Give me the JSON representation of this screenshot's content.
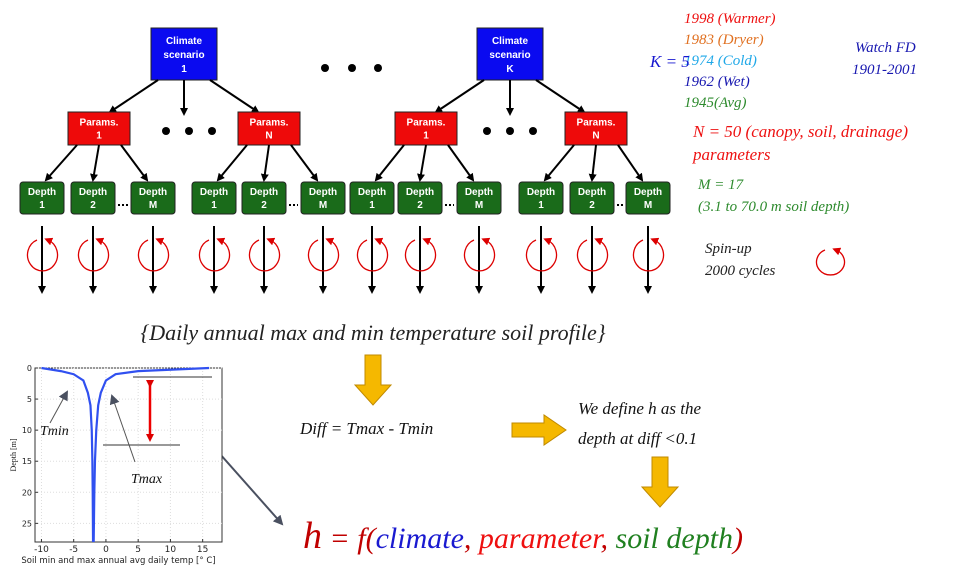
{
  "tree": {
    "scenarios": [
      {
        "lines": [
          "Climate",
          "scenario",
          "1"
        ]
      },
      {
        "lines": [
          "Climate",
          "scenario",
          "K"
        ]
      }
    ],
    "params": [
      {
        "lines": [
          "Params.",
          "1"
        ]
      },
      {
        "lines": [
          "Params.",
          "N"
        ]
      },
      {
        "lines": [
          "Params.",
          "1"
        ]
      },
      {
        "lines": [
          "Params.",
          "N"
        ]
      }
    ],
    "depths": [
      [
        "Depth",
        "1"
      ],
      [
        "Depth",
        "2"
      ],
      [
        "Depth",
        "M"
      ],
      [
        "Depth",
        "1"
      ],
      [
        "Depth",
        "2"
      ],
      [
        "Depth",
        "M"
      ],
      [
        "Depth",
        "1"
      ],
      [
        "Depth",
        "2"
      ],
      [
        "Depth",
        "M"
      ],
      [
        "Depth",
        "1"
      ],
      [
        "Depth",
        "2"
      ],
      [
        "Depth",
        "M"
      ]
    ]
  },
  "annotations": {
    "years": [
      "1998 (Warmer)",
      "1983 (Dryer)",
      "1974 (Cold)",
      "1962 (Wet)",
      "1945(Avg)"
    ],
    "k": "K = 5",
    "forcing": [
      "Watch FD",
      "1901-2001"
    ],
    "n": [
      "N = 50 (canopy, soil, drainage)",
      "parameters"
    ],
    "m": [
      "M = 17",
      "(3.1 to 70.0 m soil depth)"
    ],
    "spinup": [
      "Spin-up",
      "2000 cycles"
    ]
  },
  "caption": "{Daily annual max and min temperature soil profile}",
  "diff": "Diff = Tmax - Tmin",
  "define": [
    "We define h as the",
    "depth at diff <0.1"
  ],
  "formula": [
    "h",
    " = f(",
    "climate",
    ", ",
    "parameter",
    ", ",
    "soil depth",
    ")"
  ],
  "profile_plot": {
    "x_label": "Soil min and max annual avg daily temp [° C]",
    "y_label": "Depth [m]",
    "xlim": [
      -11,
      18
    ],
    "ylim": [
      0,
      28
    ],
    "xticks": [
      -10,
      -5,
      0,
      5,
      10,
      15
    ],
    "yticks": [
      0,
      5,
      10,
      15,
      20,
      25
    ],
    "tmin_label": "Tmin",
    "tmax_label": "Tmax",
    "tmin_curve": {
      "temp": [
        -10,
        -7,
        -5,
        -3.5,
        -2.8,
        -2.4,
        -2.2,
        -2.1,
        -2.05,
        -2
      ],
      "depth": [
        0,
        0.5,
        1,
        2,
        4,
        6,
        10,
        15,
        20,
        28
      ]
    },
    "tmax_curve": {
      "temp": [
        16,
        5,
        1.5,
        0,
        -0.8,
        -1.2,
        -1.5,
        -1.7,
        -1.8,
        -1.9
      ],
      "depth": [
        0,
        0.5,
        1,
        2,
        4,
        6,
        10,
        15,
        20,
        28
      ]
    }
  }
}
